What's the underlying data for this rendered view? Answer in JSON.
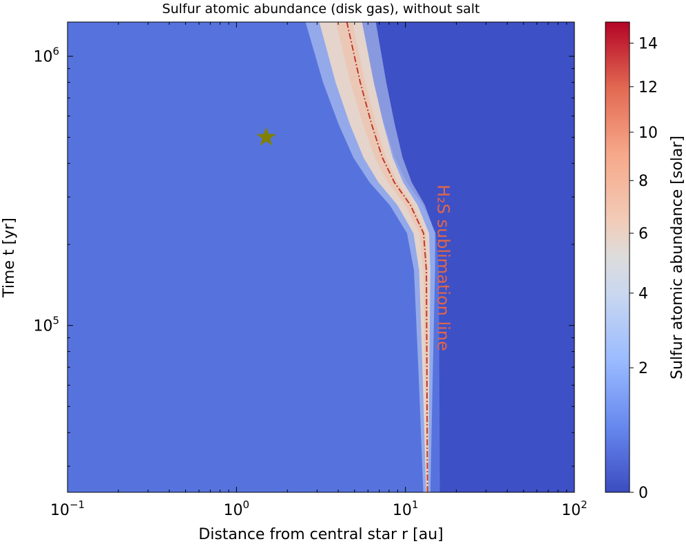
{
  "chart_data": {
    "type": "heatmap",
    "title": "Sulfur atomic abundance (disk gas), without salt",
    "xlabel": "Distance from central star r [au]",
    "ylabel": "Time t [yr]",
    "xscale": "log",
    "yscale": "log",
    "xlim": [
      0.1,
      100
    ],
    "ylim": [
      24000,
      1340000
    ],
    "x_ticks": [
      {
        "value": 0.1,
        "base": "10",
        "exp": "−1"
      },
      {
        "value": 1,
        "base": "10",
        "exp": "0"
      },
      {
        "value": 10,
        "base": "10",
        "exp": "1"
      },
      {
        "value": 100,
        "base": "10",
        "exp": "2"
      }
    ],
    "y_ticks": [
      {
        "value": 100000,
        "base": "10",
        "exp": "5"
      },
      {
        "value": 1000000,
        "base": "10",
        "exp": "6"
      }
    ],
    "colorbar": {
      "label": "Sulfur atomic abundance [solar]",
      "min": 0,
      "max": 15,
      "colormap": "coolwarm",
      "ticks": [
        "0",
        "2",
        "4",
        "6",
        "8",
        "10",
        "12",
        "14"
      ],
      "tick_values": [
        0,
        2,
        4,
        6,
        8,
        10,
        12,
        14
      ]
    },
    "sublimation_line": {
      "label": "H₂S sublimation line",
      "color": "#c0392b",
      "style": "dash-dot",
      "points": [
        {
          "r": 13.5,
          "t": 24000
        },
        {
          "r": 13.4,
          "t": 65000
        },
        {
          "r": 13.3,
          "t": 160000
        },
        {
          "r": 12.8,
          "t": 220000
        },
        {
          "r": 10.7,
          "t": 280000
        },
        {
          "r": 8.6,
          "t": 340000
        },
        {
          "r": 7.3,
          "t": 420000
        },
        {
          "r": 6.3,
          "t": 560000
        },
        {
          "r": 5.4,
          "t": 800000
        },
        {
          "r": 4.5,
          "t": 1340000
        }
      ]
    },
    "marker": {
      "shape": "star",
      "r": 1.5,
      "t": 500000,
      "color": "#808000"
    },
    "background_levels": {
      "inner": 1.0,
      "outer": 0.2
    }
  }
}
